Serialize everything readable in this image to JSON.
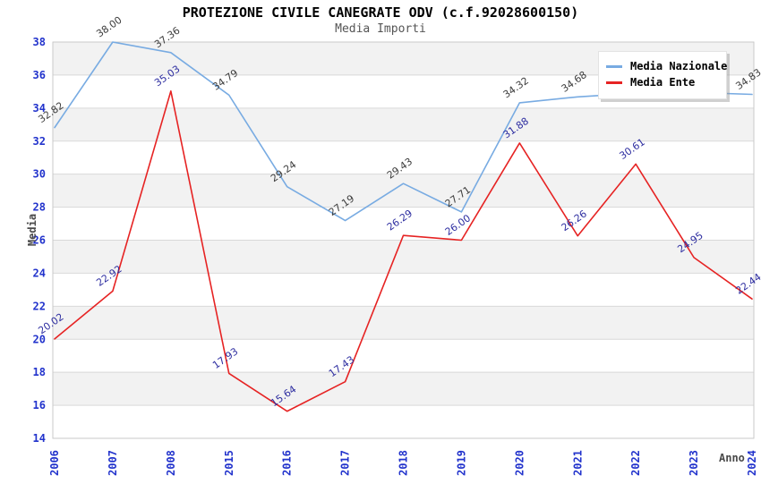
{
  "chart_data": {
    "type": "line",
    "title": "PROTEZIONE CIVILE CANEGRATE ODV (c.f.92028600150)",
    "subtitle": "Media Importi",
    "xlabel": "Anno",
    "ylabel": "Media",
    "x_categories": [
      "2006",
      "2007",
      "2008",
      "2015",
      "2016",
      "2017",
      "2018",
      "2019",
      "2020",
      "2021",
      "2022",
      "2023",
      "2024"
    ],
    "ylim": [
      14,
      38
    ],
    "ytick_step": 2,
    "yticks": [
      38,
      36,
      34,
      32,
      30,
      28,
      26,
      24,
      22,
      20,
      18,
      16,
      14
    ],
    "grid": "horizontal",
    "banded_background": true,
    "legend_position": "top-right",
    "series": [
      {
        "name": "Media Nazionale",
        "color": "#78abe2",
        "label_color": "#3c3c3c",
        "values": [
          32.82,
          38.0,
          37.36,
          34.79,
          29.24,
          27.19,
          29.43,
          27.71,
          34.32,
          34.68,
          34.9,
          34.95,
          34.83
        ],
        "labels": [
          "32.82",
          "38.00",
          "37.36",
          "34.79",
          "29.24",
          "27.19",
          "29.43",
          "27.71",
          "34.32",
          "34.68",
          null,
          null,
          "34.83"
        ]
      },
      {
        "name": "Media Ente",
        "color": "#e62323",
        "label_color": "#2d2da0",
        "values": [
          20.02,
          22.92,
          35.03,
          17.93,
          15.64,
          17.43,
          26.29,
          26.0,
          31.88,
          26.26,
          30.61,
          24.95,
          22.44
        ],
        "labels": [
          "20.02",
          "22.92",
          "35.03",
          "17.93",
          "15.64",
          "17.43",
          "26.29",
          "26.00",
          "31.88",
          "26.26",
          "30.61",
          "24.95",
          "22.44"
        ]
      }
    ],
    "colors": {
      "band": "#f2f2f2",
      "grid": "#d9d9d9",
      "plot_border": "#c9c9c9",
      "tick_label": "#2233cc",
      "axis_title": "#4a4a4a",
      "title": "#000000",
      "subtitle": "#555555"
    }
  }
}
